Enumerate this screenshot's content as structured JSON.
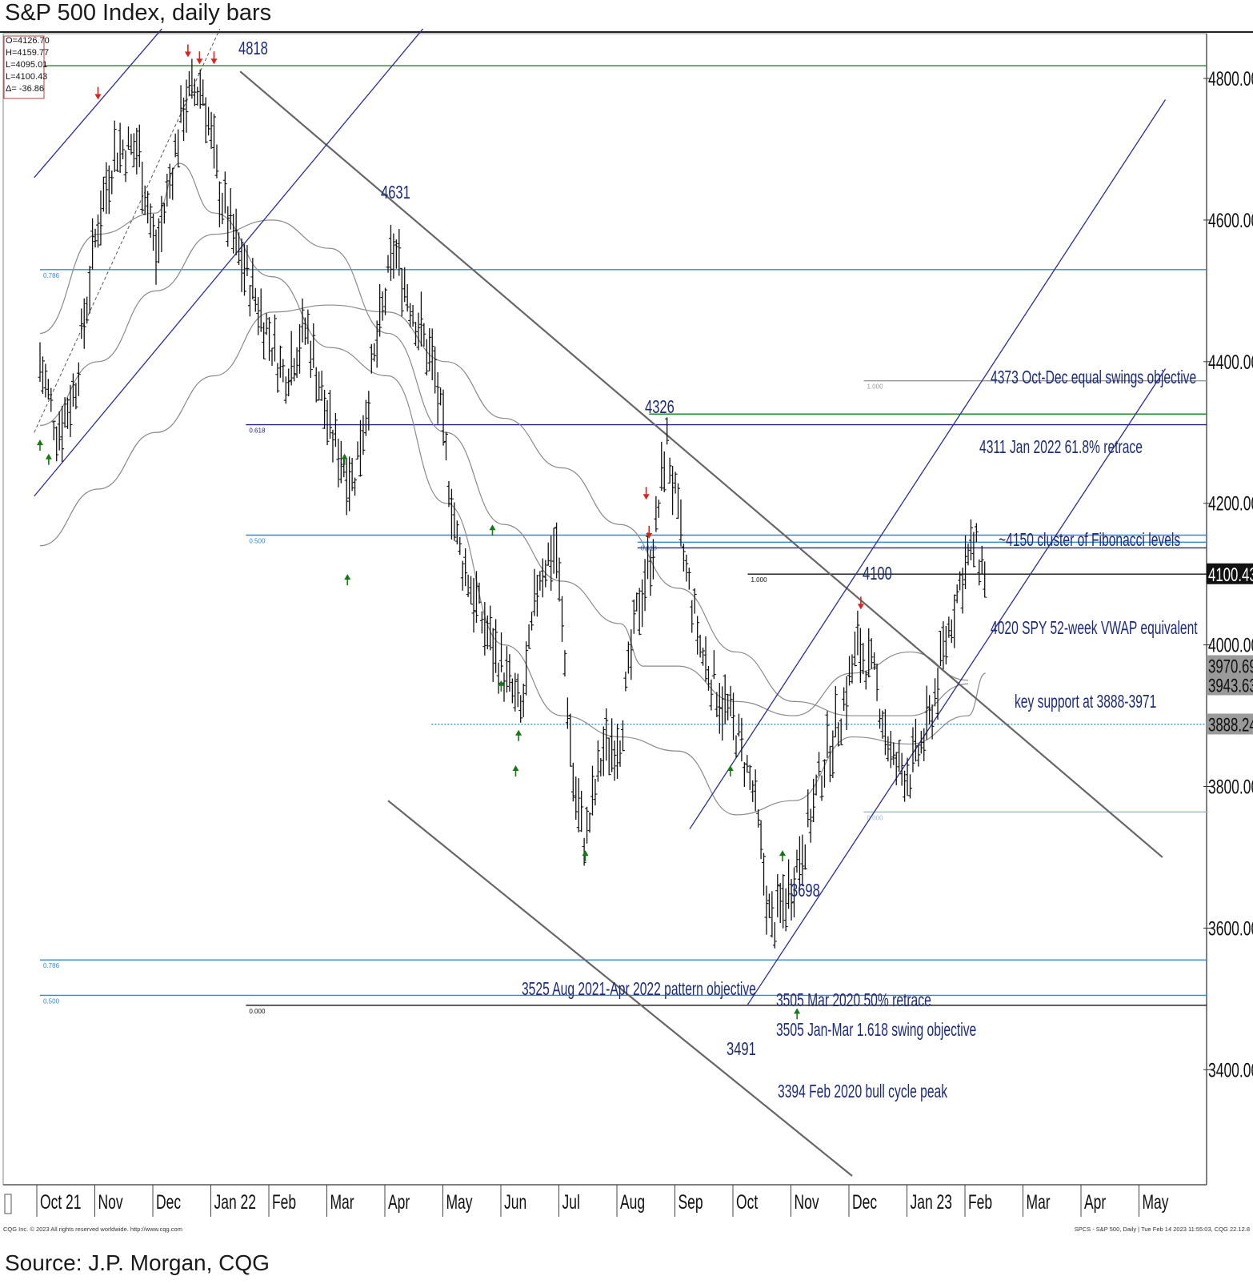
{
  "title": "S&P 500 Index, daily bars",
  "source": "Source: J.P. Morgan, CQG",
  "footer_left": "CQG Inc. © 2023 All rights reserved worldwide. http://www.cqg.com",
  "footer_right": "SPCS - S&P 500, Daily | Tue Feb 14 2023 11:55:03, CQG 22.12.8",
  "ohlc_box": [
    "O=4126.70",
    "H=4159.77",
    "L=4095.01",
    "L=4100.43",
    "Δ= -36.86"
  ],
  "chart_data": {
    "type": "bar",
    "subtype": "ohlc-daily-bars",
    "title": "S&P 500 Index, daily bars",
    "y_axis_side": "right",
    "ylim": [
      3250,
      4870
    ],
    "y_ticks": [
      "4800.00",
      "4600.00",
      "4400.00",
      "4200.00",
      "4000.00",
      "3800.00",
      "3600.00",
      "3400.00"
    ],
    "y_tick_values": [
      4800,
      4600,
      4400,
      4200,
      4000,
      3800,
      3600,
      3400
    ],
    "x_ticks": [
      "Oct 21",
      "Nov",
      "Dec",
      "Jan 22",
      "Feb",
      "Mar",
      "Apr",
      "May",
      "Jun",
      "Jul",
      "Aug",
      "Sep",
      "Oct",
      "Nov",
      "Dec",
      "Jan 23",
      "Feb",
      "Mar",
      "Apr",
      "May"
    ],
    "x_tick_index": [
      0,
      1,
      2,
      3,
      4,
      5,
      6,
      7,
      8,
      9,
      10,
      11,
      12,
      13,
      14,
      15,
      16,
      17,
      18,
      19
    ],
    "price_tags": [
      {
        "label": "4100.43",
        "value": 4100.43,
        "style": "dark"
      },
      {
        "label": "3970.69",
        "value": 3970.69,
        "style": "grey"
      },
      {
        "label": "3943.63",
        "value": 3943.63,
        "style": "grey"
      },
      {
        "label": "3888.24",
        "value": 3888.24,
        "style": "grey"
      }
    ],
    "swing_labels": [
      {
        "text": "4818",
        "month": 2.75,
        "value": 4818
      },
      {
        "text": "4631",
        "month": 5.9,
        "value": 4631
      },
      {
        "text": "4326",
        "month": 10.55,
        "value": 4326
      },
      {
        "text": "4100",
        "month": 14.0,
        "value": 4100
      },
      {
        "text": "3698",
        "month": 13.0,
        "value": 3698
      },
      {
        "text": "3491",
        "month": 12.0,
        "value": 3491
      }
    ],
    "annotations": [
      "4373 Oct-Dec equal swings objective",
      "4311 Jan 2022 61.8% retrace",
      "~4150 cluster of Fibonacci levels",
      "4020 SPY 52-week VWAP equivalent",
      "key support at 3888-3971",
      "3525 Aug 2021-Apr 2022 pattern objective",
      "3505 Mar 2020 50% retrace",
      "3505 Jan-Mar 1.618 swing objective",
      "3394 Feb 2020 bull cycle peak"
    ],
    "horizontal_levels": [
      {
        "value": 4818,
        "color": "#1e8c1e",
        "from_month": 0.0
      },
      {
        "value": 4530,
        "color": "#2e8bd6",
        "from_month": 0.0,
        "label": "0.786"
      },
      {
        "value": 4311,
        "color": "#24247a",
        "from_month": 3.55,
        "label": "0.618"
      },
      {
        "value": 4326,
        "color": "#1e8c1e",
        "from_month": 10.5
      },
      {
        "value": 4155,
        "color": "#2e8bd6",
        "from_month": 3.55,
        "label": "0.500"
      },
      {
        "value": 4145,
        "color": "#2e8bd6",
        "from_month": 10.3,
        "label": "0.618"
      },
      {
        "value": 4137,
        "color": "#24247a",
        "from_month": 10.3
      },
      {
        "value": 4100,
        "color": "#111111",
        "from_month": 12.2,
        "label": "1.000"
      },
      {
        "value": 4373,
        "color": "#999999",
        "from_month": 14.2,
        "label": "1.000"
      },
      {
        "value": 3888,
        "color": "#2e8bd6",
        "from_month": 6.75,
        "dashed": true
      },
      {
        "value": 3764,
        "color": "#9fb8d6",
        "from_month": 14.2,
        "label": "0.000"
      },
      {
        "value": 3555,
        "color": "#2e8bd6",
        "from_month": 0.0,
        "label": "0.786"
      },
      {
        "value": 3505,
        "color": "#2e8bd6",
        "from_month": 0.0,
        "label": "0.500"
      },
      {
        "value": 3491,
        "color": "#111111",
        "from_month": 3.55,
        "label": "0.000"
      }
    ],
    "trend_lines": [
      {
        "color": "#666666",
        "points": [
          [
            3.45,
            4810
          ],
          [
            19.35,
            3700
          ]
        ]
      },
      {
        "color": "#666666",
        "points": [
          [
            6.0,
            3780
          ],
          [
            14.0,
            3250
          ]
        ]
      },
      {
        "color": "#2a2a9a",
        "points": [
          [
            -0.1,
            4660
          ],
          [
            2.1,
            4870
          ]
        ]
      },
      {
        "color": "#2a2a9a",
        "points": [
          [
            -0.1,
            4210
          ],
          [
            6.6,
            4870
          ]
        ]
      },
      {
        "color": "#2a2a9a",
        "points": [
          [
            11.2,
            3740
          ],
          [
            19.4,
            4770
          ]
        ]
      },
      {
        "color": "#2a2a9a",
        "points": [
          [
            12.2,
            3492
          ],
          [
            19.4,
            4390
          ]
        ]
      }
    ],
    "moving_averages": [
      {
        "name": "MA-short",
        "color": "#8a8a8a",
        "points": [
          [
            0,
            4440
          ],
          [
            1,
            4580
          ],
          [
            2,
            4610
          ],
          [
            2.4,
            4680
          ],
          [
            3,
            4610
          ],
          [
            4,
            4520
          ],
          [
            5,
            4420
          ],
          [
            6,
            4380
          ],
          [
            7,
            4200
          ],
          [
            8,
            4000
          ],
          [
            9,
            3900
          ],
          [
            10,
            3870
          ],
          [
            11,
            3850
          ],
          [
            12,
            3760
          ],
          [
            13,
            3780
          ],
          [
            14,
            3870
          ],
          [
            15,
            3860
          ],
          [
            16,
            3900
          ],
          [
            16.3,
            3960
          ]
        ]
      },
      {
        "name": "MA-mid",
        "color": "#8a8a8a",
        "points": [
          [
            0,
            4310
          ],
          [
            1,
            4400
          ],
          [
            2,
            4500
          ],
          [
            3,
            4580
          ],
          [
            4,
            4600
          ],
          [
            5,
            4560
          ],
          [
            6,
            4440
          ],
          [
            7,
            4300
          ],
          [
            8,
            4170
          ],
          [
            9,
            4090
          ],
          [
            10,
            4030
          ],
          [
            10.4,
            3970
          ],
          [
            11,
            3970
          ],
          [
            12,
            3920
          ],
          [
            13,
            3900
          ],
          [
            14,
            3960
          ],
          [
            15,
            3990
          ],
          [
            16,
            3950
          ]
        ]
      },
      {
        "name": "MA-long",
        "color": "#8a8a8a",
        "points": [
          [
            0,
            4140
          ],
          [
            1,
            4220
          ],
          [
            2,
            4300
          ],
          [
            3,
            4380
          ],
          [
            4,
            4470
          ],
          [
            5,
            4480
          ],
          [
            6,
            4470
          ],
          [
            7,
            4400
          ],
          [
            8,
            4320
          ],
          [
            9,
            4250
          ],
          [
            10,
            4170
          ],
          [
            11,
            4080
          ],
          [
            12,
            3990
          ],
          [
            13,
            3920
          ],
          [
            14,
            3900
          ],
          [
            15,
            3900
          ],
          [
            16,
            3945
          ]
        ]
      }
    ],
    "arrows_down_red": [
      [
        1.0,
        4770
      ],
      [
        2.55,
        4830
      ],
      [
        2.75,
        4820
      ],
      [
        3.0,
        4820
      ],
      [
        10.45,
        4205
      ],
      [
        10.5,
        4150
      ],
      [
        14.15,
        4050
      ]
    ],
    "arrows_up_green": [
      [
        0.0,
        4290
      ],
      [
        0.15,
        4270
      ],
      [
        5.25,
        4270
      ],
      [
        5.3,
        4100
      ],
      [
        7.8,
        4170
      ],
      [
        7.95,
        3950
      ],
      [
        8.25,
        3880
      ],
      [
        8.2,
        3830
      ],
      [
        9.4,
        3710
      ],
      [
        11.9,
        3830
      ],
      [
        12.8,
        3710
      ],
      [
        13.05,
        3487
      ]
    ],
    "ohlc_anchors": [
      [
        0,
        4400
      ],
      [
        0.3,
        4300
      ],
      [
        0.6,
        4360
      ],
      [
        1,
        4600
      ],
      [
        1.3,
        4700
      ],
      [
        1.7,
        4700
      ],
      [
        2,
        4550
      ],
      [
        2.5,
        4770
      ],
      [
        2.8,
        4790
      ],
      [
        3.1,
        4640
      ],
      [
        3.4,
        4560
      ],
      [
        3.8,
        4470
      ],
      [
        4.2,
        4380
      ],
      [
        4.6,
        4450
      ],
      [
        5.0,
        4300
      ],
      [
        5.4,
        4230
      ],
      [
        5.8,
        4420
      ],
      [
        6.1,
        4560
      ],
      [
        6.4,
        4480
      ],
      [
        6.8,
        4390
      ],
      [
        7.2,
        4140
      ],
      [
        7.6,
        4040
      ],
      [
        8.0,
        3960
      ],
      [
        8.3,
        3900
      ],
      [
        8.6,
        4100
      ],
      [
        8.9,
        4140
      ],
      [
        9.2,
        3800
      ],
      [
        9.4,
        3720
      ],
      [
        9.7,
        3850
      ],
      [
        10.0,
        3870
      ],
      [
        10.3,
        4050
      ],
      [
        10.6,
        4150
      ],
      [
        10.8,
        4290
      ],
      [
        11.1,
        4120
      ],
      [
        11.4,
        3990
      ],
      [
        11.7,
        3930
      ],
      [
        12.0,
        3880
      ],
      [
        12.3,
        3790
      ],
      [
        12.6,
        3600
      ],
      [
        12.9,
        3650
      ],
      [
        13.2,
        3730
      ],
      [
        13.5,
        3830
      ],
      [
        13.8,
        3900
      ],
      [
        14.1,
        4000
      ],
      [
        14.4,
        3950
      ],
      [
        14.7,
        3830
      ],
      [
        15.0,
        3820
      ],
      [
        15.3,
        3880
      ],
      [
        15.6,
        4000
      ],
      [
        15.9,
        4100
      ],
      [
        16.1,
        4140
      ],
      [
        16.3,
        4100
      ]
    ]
  }
}
